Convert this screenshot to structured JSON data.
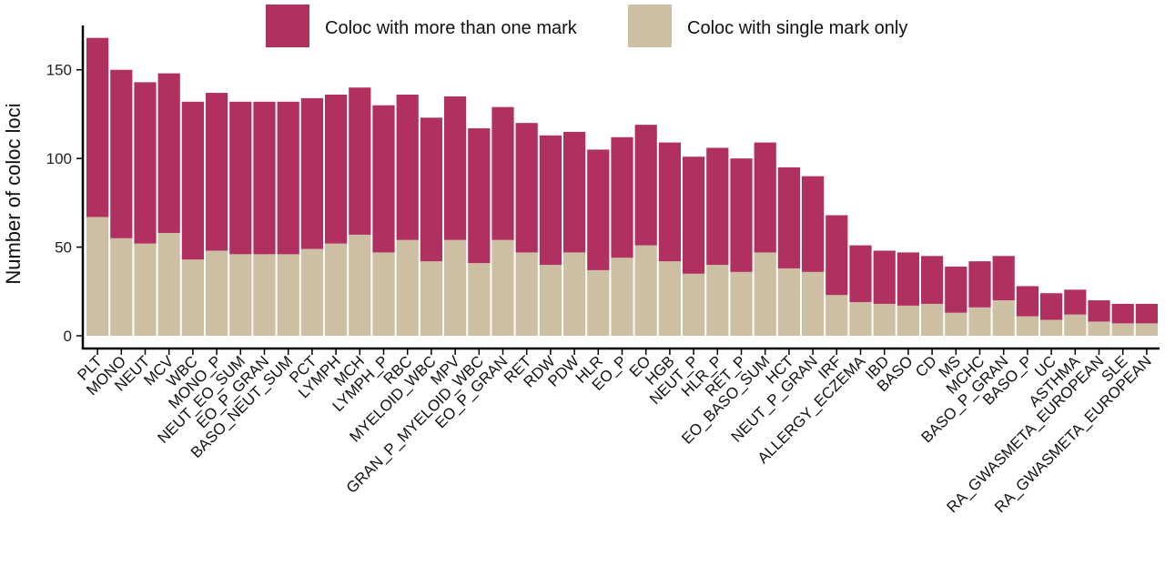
{
  "chart_data": {
    "type": "bar",
    "stacked": true,
    "title": "",
    "xlabel": "",
    "ylabel": "Number of coloc loci",
    "ylim": [
      0,
      175
    ],
    "yticks": [
      0,
      50,
      100,
      150
    ],
    "grid": false,
    "legend_position": "top",
    "categories": [
      "PLT",
      "MONO",
      "NEUT",
      "MCV",
      "WBC",
      "MONO_P",
      "NEUT_EO_SUM",
      "EO_P_GRAN",
      "BASO_NEUT_SUM",
      "PCT",
      "LYMPH",
      "MCH",
      "LYMPH_P",
      "RBC",
      "MYELOID_WBC",
      "MPV",
      "GRAN_P_MYELOID_WBC",
      "EO_P_GRAN",
      "RET",
      "RDW",
      "PDW",
      "HLR",
      "EO_P",
      "EO",
      "HGB",
      "NEUT_P",
      "HLR_P",
      "RET_P",
      "EO_BASO_SUM",
      "HCT",
      "NEUT_P_GRAN",
      "IRF",
      "ALLERGY_ECZEMA",
      "IBD",
      "BASO",
      "CD",
      "MS",
      "MCHC",
      "BASO_P_GRAN",
      "BASO_P",
      "UC",
      "ASTHMA",
      "RA_GWASMETA_EUROPEAN",
      "SLE",
      "RA_GWASMETA_EUROPEAN"
    ],
    "series": [
      {
        "name": "Coloc with single mark only",
        "color": "#cdbfa4",
        "values": [
          67,
          55,
          52,
          58,
          43,
          48,
          46,
          46,
          46,
          49,
          52,
          57,
          47,
          54,
          42,
          54,
          41,
          54,
          47,
          40,
          47,
          37,
          44,
          51,
          42,
          35,
          40,
          36,
          47,
          38,
          36,
          23,
          19,
          18,
          17,
          18,
          13,
          16,
          20,
          11,
          9,
          12,
          8,
          7,
          7
        ]
      },
      {
        "name": "Coloc with more than one mark",
        "color": "#b03060",
        "values": [
          101,
          95,
          91,
          90,
          89,
          89,
          86,
          86,
          86,
          85,
          84,
          83,
          83,
          82,
          81,
          81,
          76,
          75,
          73,
          73,
          68,
          68,
          68,
          68,
          67,
          66,
          66,
          64,
          62,
          57,
          54,
          45,
          32,
          30,
          30,
          27,
          26,
          26,
          25,
          17,
          15,
          14,
          12,
          11,
          11
        ]
      }
    ]
  }
}
